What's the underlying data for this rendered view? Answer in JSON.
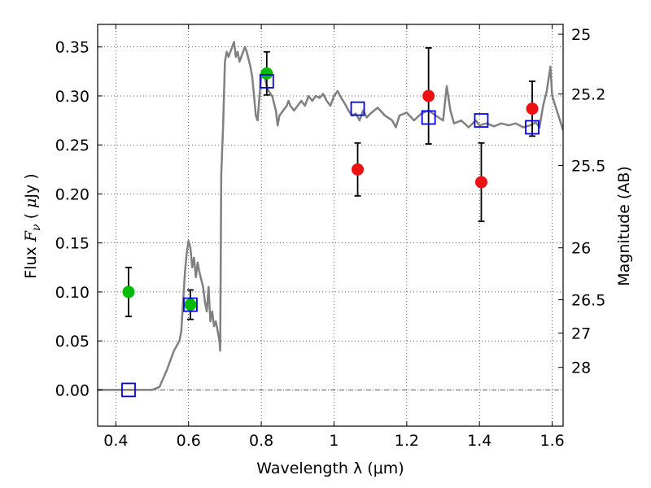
{
  "chart_data": {
    "type": "scatter",
    "xlabel": "Wavelength  λ (μm)",
    "ylabel_parts": [
      "Flux  ",
      "F",
      "ν",
      "  ( ",
      "μ",
      "Jy )"
    ],
    "ylabel_right": "Magnitude (AB)",
    "xlim": [
      0.35,
      1.63
    ],
    "ylim": [
      -0.037,
      0.373
    ],
    "grid": true,
    "x_ticks": [
      0.4,
      0.6,
      0.8,
      1.0,
      1.2,
      1.4,
      1.6
    ],
    "x_tick_labels": [
      "0.4",
      "0.6",
      "0.8",
      "1",
      "1.2",
      "1.4",
      "1.6"
    ],
    "y_ticks": [
      0.0,
      0.05,
      0.1,
      0.15,
      0.2,
      0.25,
      0.3,
      0.35
    ],
    "y_tick_labels": [
      "0.00",
      "0.05",
      "0.10",
      "0.15",
      "0.20",
      "0.25",
      "0.30",
      "0.35"
    ],
    "right_ticks": [
      {
        "label": "25",
        "flux": 0.363
      },
      {
        "label": "25.2",
        "flux": 0.302
      },
      {
        "label": "25.5",
        "flux": 0.229
      },
      {
        "label": "26",
        "flux": 0.145
      },
      {
        "label": "26.5",
        "flux": 0.092
      },
      {
        "label": "27",
        "flux": 0.058
      },
      {
        "label": "28",
        "flux": 0.023
      }
    ],
    "zero_line": 0.0,
    "template_spectrum": {
      "color": "#808080",
      "x": [
        0.35,
        0.5,
        0.52,
        0.54,
        0.56,
        0.575,
        0.58,
        0.585,
        0.59,
        0.595,
        0.6,
        0.605,
        0.61,
        0.615,
        0.62,
        0.625,
        0.63,
        0.64,
        0.645,
        0.65,
        0.655,
        0.66,
        0.665,
        0.67,
        0.675,
        0.68,
        0.685,
        0.687,
        0.69,
        0.695,
        0.7,
        0.705,
        0.71,
        0.715,
        0.72,
        0.725,
        0.73,
        0.735,
        0.74,
        0.745,
        0.75,
        0.755,
        0.76,
        0.77,
        0.775,
        0.78,
        0.785,
        0.79,
        0.795,
        0.8,
        0.81,
        0.815,
        0.82,
        0.83,
        0.84,
        0.845,
        0.85,
        0.86,
        0.87,
        0.875,
        0.88,
        0.89,
        0.9,
        0.91,
        0.92,
        0.93,
        0.94,
        0.95,
        0.96,
        0.97,
        0.98,
        0.99,
        1.0,
        1.01,
        1.02,
        1.03,
        1.04,
        1.05,
        1.06,
        1.07,
        1.08,
        1.09,
        1.1,
        1.12,
        1.14,
        1.16,
        1.17,
        1.18,
        1.2,
        1.22,
        1.24,
        1.26,
        1.28,
        1.3,
        1.31,
        1.32,
        1.33,
        1.35,
        1.37,
        1.39,
        1.4,
        1.42,
        1.44,
        1.46,
        1.48,
        1.5,
        1.52,
        1.54,
        1.555,
        1.565,
        1.575,
        1.585,
        1.595,
        1.6,
        1.63
      ],
      "y": [
        0.0,
        0.0,
        0.003,
        0.02,
        0.04,
        0.05,
        0.06,
        0.09,
        0.12,
        0.14,
        0.152,
        0.145,
        0.125,
        0.135,
        0.115,
        0.13,
        0.12,
        0.105,
        0.09,
        0.08,
        0.105,
        0.07,
        0.08,
        0.065,
        0.07,
        0.06,
        0.05,
        0.04,
        0.22,
        0.27,
        0.335,
        0.345,
        0.34,
        0.345,
        0.35,
        0.355,
        0.34,
        0.345,
        0.335,
        0.34,
        0.345,
        0.35,
        0.345,
        0.33,
        0.32,
        0.3,
        0.28,
        0.275,
        0.3,
        0.32,
        0.318,
        0.31,
        0.305,
        0.3,
        0.285,
        0.27,
        0.28,
        0.285,
        0.29,
        0.295,
        0.29,
        0.285,
        0.29,
        0.295,
        0.29,
        0.3,
        0.295,
        0.3,
        0.298,
        0.302,
        0.295,
        0.29,
        0.3,
        0.305,
        0.298,
        0.292,
        0.285,
        0.28,
        0.282,
        0.275,
        0.285,
        0.278,
        0.282,
        0.288,
        0.28,
        0.275,
        0.268,
        0.28,
        0.283,
        0.275,
        0.282,
        0.285,
        0.28,
        0.275,
        0.31,
        0.285,
        0.272,
        0.275,
        0.268,
        0.275,
        0.27,
        0.272,
        0.269,
        0.272,
        0.27,
        0.272,
        0.268,
        0.27,
        0.273,
        0.268,
        0.29,
        0.305,
        0.33,
        0.3,
        0.265
      ]
    },
    "series": [
      {
        "marker": "circle",
        "color": "#00bb00",
        "points": [
          {
            "x": 0.435,
            "y": 0.1,
            "err": 0.025
          },
          {
            "x": 0.605,
            "y": 0.087,
            "err": 0.015
          },
          {
            "x": 0.815,
            "y": 0.323,
            "err": 0.022
          }
        ]
      },
      {
        "marker": "circle",
        "color": "#ee1111",
        "points": [
          {
            "x": 1.065,
            "y": 0.225,
            "err": 0.027
          },
          {
            "x": 1.26,
            "y": 0.3,
            "err": 0.049
          },
          {
            "x": 1.405,
            "y": 0.212,
            "err": 0.04
          },
          {
            "x": 1.545,
            "y": 0.287,
            "err": 0.028
          }
        ]
      },
      {
        "marker": "square",
        "color": "#0000ee",
        "points": [
          {
            "x": 0.435,
            "y": 0.0
          },
          {
            "x": 0.605,
            "y": 0.087
          },
          {
            "x": 0.815,
            "y": 0.315
          },
          {
            "x": 1.065,
            "y": 0.287
          },
          {
            "x": 1.26,
            "y": 0.278
          },
          {
            "x": 1.405,
            "y": 0.275
          },
          {
            "x": 1.545,
            "y": 0.268
          }
        ]
      }
    ]
  }
}
